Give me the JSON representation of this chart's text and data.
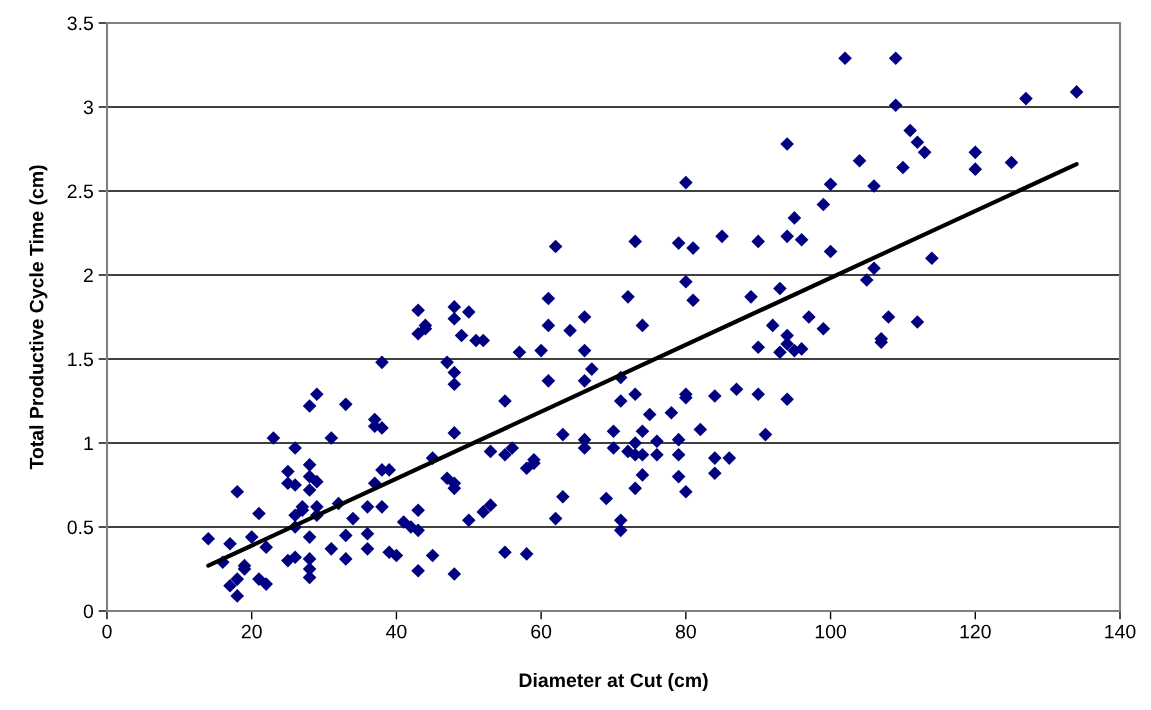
{
  "chart_data": {
    "type": "scatter",
    "xlabel": "Diameter at Cut (cm)",
    "ylabel": "Total Productive Cycle Time (cm)",
    "xlim": [
      0,
      140
    ],
    "xticks": [
      0,
      20,
      40,
      60,
      80,
      100,
      120,
      140
    ],
    "ylim": [
      0,
      3.5
    ],
    "yticks": [
      0,
      0.5,
      1,
      1.5,
      2,
      2.5,
      3,
      3.5
    ],
    "grid": "y",
    "legend": false,
    "series": [
      {
        "marker": "diamond",
        "color": "#000080",
        "x": [
          14,
          16,
          17,
          17,
          18,
          18,
          18,
          19,
          19,
          20,
          21,
          21,
          22,
          22,
          23,
          25,
          25,
          25,
          26,
          26,
          26,
          26,
          26,
          27,
          27,
          28,
          28,
          28,
          28,
          28,
          28,
          28,
          28,
          29,
          29,
          29,
          29,
          31,
          31,
          32,
          33,
          33,
          33,
          34,
          36,
          36,
          36,
          37,
          37,
          37,
          38,
          38,
          38,
          38,
          39,
          39,
          40,
          41,
          42,
          43,
          43,
          43,
          43,
          43,
          44,
          44,
          45,
          45,
          47,
          47,
          48,
          48,
          48,
          48,
          48,
          48,
          48,
          48,
          49,
          50,
          50,
          51,
          52,
          52,
          53,
          53,
          55,
          55,
          55,
          56,
          57,
          58,
          58,
          59,
          59,
          60,
          61,
          61,
          61,
          62,
          62,
          63,
          63,
          64,
          66,
          66,
          66,
          66,
          66,
          67,
          69,
          70,
          70,
          71,
          71,
          71,
          71,
          72,
          72,
          73,
          73,
          73,
          73,
          73,
          74,
          74,
          74,
          74,
          75,
          76,
          76,
          78,
          79,
          79,
          79,
          79,
          80,
          80,
          80,
          80,
          80,
          81,
          81,
          82,
          84,
          84,
          84,
          85,
          86,
          87,
          89,
          90,
          90,
          90,
          91,
          92,
          93,
          93,
          94,
          94,
          94,
          94,
          94,
          95,
          95,
          96,
          96,
          97,
          99,
          99,
          100,
          100,
          102,
          104,
          105,
          106,
          106,
          107,
          107,
          108,
          109,
          109,
          110,
          111,
          112,
          112,
          113,
          114,
          120,
          120,
          125,
          127,
          134
        ],
        "values": [
          0.43,
          0.29,
          0.15,
          0.4,
          0.71,
          0.19,
          0.09,
          0.25,
          0.27,
          0.44,
          0.58,
          0.19,
          0.16,
          0.38,
          1.03,
          0.83,
          0.76,
          0.3,
          0.97,
          0.75,
          0.57,
          0.5,
          0.32,
          0.62,
          0.6,
          0.87,
          0.8,
          0.72,
          0.44,
          0.31,
          0.25,
          0.2,
          1.22,
          1.29,
          0.77,
          0.62,
          0.57,
          1.03,
          0.37,
          0.64,
          1.23,
          0.45,
          0.31,
          0.55,
          0.62,
          0.46,
          0.37,
          1.14,
          1.1,
          0.76,
          1.48,
          1.09,
          0.84,
          0.62,
          0.84,
          0.35,
          0.33,
          0.53,
          0.5,
          1.79,
          1.65,
          0.6,
          0.48,
          0.24,
          1.68,
          1.7,
          0.91,
          0.33,
          1.48,
          0.79,
          1.81,
          1.74,
          1.42,
          1.35,
          1.06,
          0.76,
          0.73,
          0.22,
          1.64,
          1.78,
          0.54,
          1.61,
          1.61,
          0.59,
          0.63,
          0.95,
          1.25,
          0.93,
          0.35,
          0.97,
          1.54,
          0.85,
          0.34,
          0.9,
          0.88,
          1.55,
          1.86,
          1.7,
          1.37,
          2.17,
          0.55,
          1.05,
          0.68,
          1.67,
          1.75,
          1.55,
          1.37,
          1.02,
          0.97,
          1.44,
          0.67,
          1.07,
          0.97,
          1.39,
          1.25,
          0.54,
          0.48,
          1.87,
          0.95,
          2.2,
          1.29,
          1.0,
          0.93,
          0.73,
          1.7,
          1.07,
          0.93,
          0.81,
          1.17,
          1.01,
          0.93,
          1.18,
          2.19,
          1.02,
          0.93,
          0.8,
          2.55,
          1.96,
          1.29,
          1.27,
          0.71,
          2.16,
          1.85,
          1.08,
          1.28,
          0.91,
          0.82,
          2.23,
          0.91,
          1.32,
          1.87,
          2.2,
          1.57,
          1.29,
          1.05,
          1.7,
          1.92,
          1.54,
          2.78,
          2.23,
          1.64,
          1.59,
          1.26,
          2.34,
          1.55,
          2.21,
          1.56,
          1.75,
          2.42,
          1.68,
          2.54,
          2.14,
          3.29,
          2.68,
          1.97,
          2.53,
          2.04,
          1.62,
          1.6,
          1.75,
          3.29,
          3.01,
          2.64,
          2.86,
          2.79,
          1.72,
          2.73,
          2.1,
          2.73,
          2.63,
          2.67,
          3.05,
          3.09
        ]
      },
      {
        "type": "line",
        "color": "#000000",
        "x": [
          14,
          134
        ],
        "values": [
          0.27,
          2.66
        ]
      }
    ]
  }
}
